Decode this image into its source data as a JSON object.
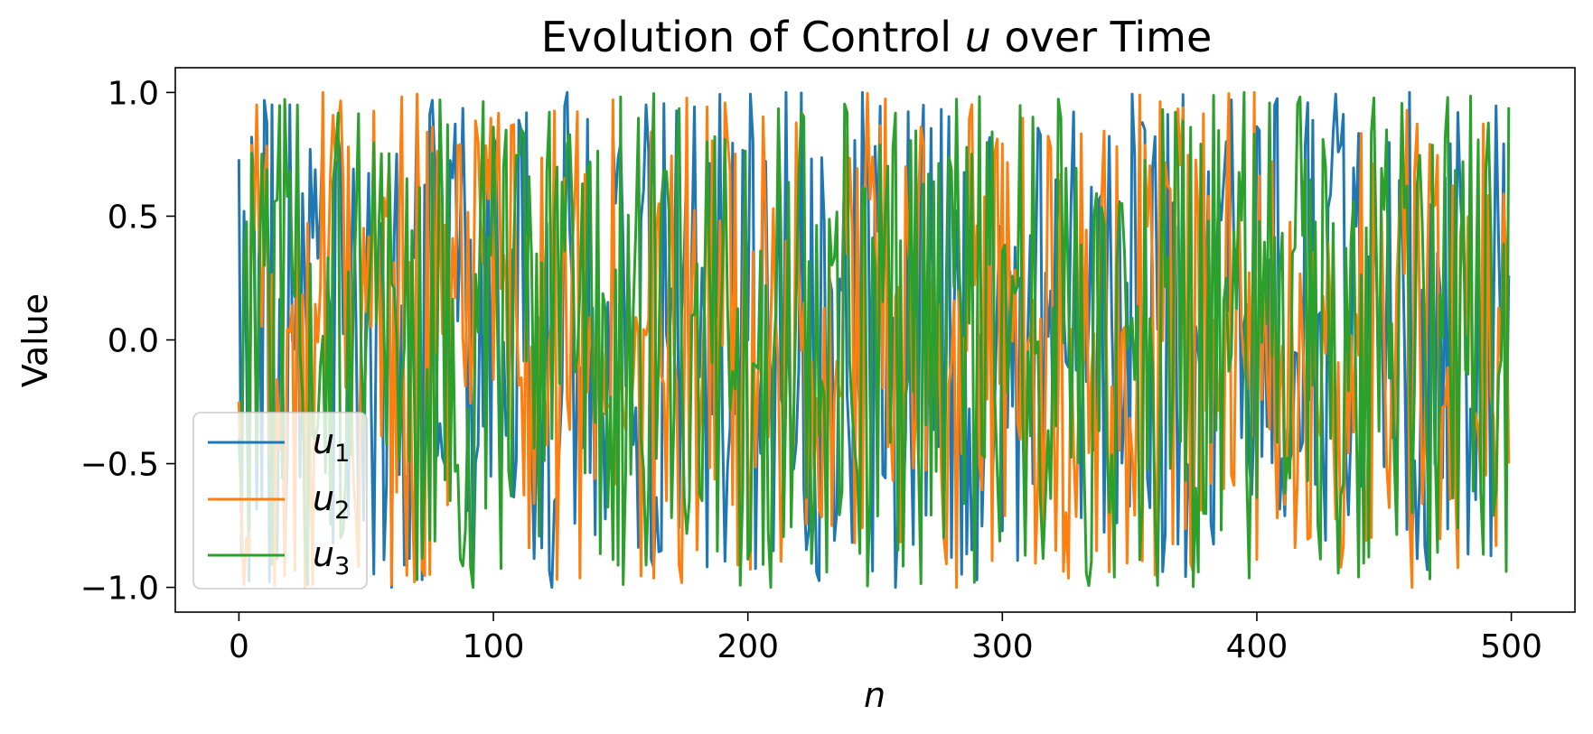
{
  "chart_data": {
    "type": "line",
    "title": {
      "prefix": "Evolution of Control ",
      "symbol": "u",
      "suffix": " over Time"
    },
    "xlabel": "n",
    "ylabel": "Value",
    "xlim": [
      -25,
      525
    ],
    "ylim": [
      -1.1,
      1.1
    ],
    "xticks": [
      0,
      100,
      200,
      300,
      400,
      500
    ],
    "xtick_labels": [
      "0",
      "100",
      "200",
      "300",
      "400",
      "500"
    ],
    "yticks": [
      1.0,
      0.5,
      0.0,
      -0.5,
      -1.0
    ],
    "ytick_labels": [
      "1.0",
      "0.5",
      "0.0",
      "−0.5",
      "−1.0"
    ],
    "grid": false,
    "legend_position": "lower-left",
    "n_points": 500,
    "series": [
      {
        "name": "u1",
        "symbol": "u",
        "sub": "1",
        "color": "#1f77b4",
        "seed": 1,
        "start": 0.73,
        "samples": [
          [
            0,
            0.73
          ],
          [
            2,
            0.52
          ],
          [
            13,
            0.95
          ],
          [
            20,
            0.95
          ],
          [
            33,
            0.85
          ],
          [
            60,
            -1.0
          ],
          [
            92,
            -1.0
          ],
          [
            123,
            -1.0
          ],
          [
            129,
            1.0
          ],
          [
            245,
            1.0
          ],
          [
            258,
            -1.0
          ],
          [
            460,
            1.0
          ],
          [
            499,
            0.26
          ]
        ]
      },
      {
        "name": "u2",
        "symbol": "u",
        "sub": "2",
        "color": "#ff7f0e",
        "seed": 2,
        "start": -0.25,
        "samples": [
          [
            7,
            0.95
          ],
          [
            26,
            -1.0
          ],
          [
            33,
            1.0
          ],
          [
            282,
            -1.0
          ],
          [
            399,
            1.0
          ],
          [
            461,
            -1.0
          ],
          [
            499,
            -0.5
          ]
        ]
      },
      {
        "name": "u3",
        "symbol": "u",
        "sub": "3",
        "color": "#2ca02c",
        "seed": 3,
        "start": -0.4,
        "samples": [
          [
            79,
            0.97
          ],
          [
            92,
            -1.0
          ],
          [
            209,
            -1.0
          ],
          [
            395,
            1.0
          ],
          [
            475,
            0.98
          ],
          [
            499,
            0.94
          ]
        ]
      }
    ]
  }
}
